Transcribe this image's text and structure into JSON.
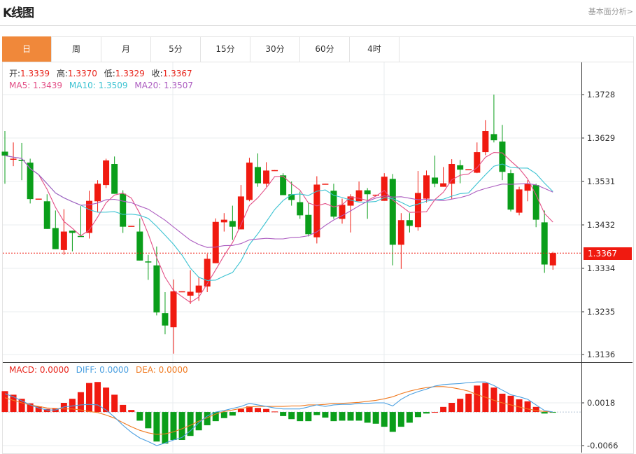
{
  "header": {
    "title": "K线图",
    "link_label": "基本面分析>"
  },
  "tabs": [
    {
      "label": "日",
      "active": true
    },
    {
      "label": "周"
    },
    {
      "label": "月"
    },
    {
      "label": "5分"
    },
    {
      "label": "15分"
    },
    {
      "label": "30分"
    },
    {
      "label": "60分"
    },
    {
      "label": "4时"
    }
  ],
  "legend": {
    "open_label": "开:",
    "open": "1.3339",
    "high_label": "高:",
    "high": "1.3370",
    "low_label": "低:",
    "low": "1.3329",
    "close_label": "收:",
    "close": "1.3367",
    "ma5": "MA5: 1.3439",
    "ma10": "MA10: 1.3509",
    "ma20": "MA20: 1.3507"
  },
  "macd_legend": {
    "macd": "MACD: 0.0000",
    "diff": "DIFF: 0.0000",
    "dea": "DEA: 0.0000"
  },
  "colors": {
    "up": "#f01a10",
    "down": "#0a9e1a",
    "ma5": "#e34f86",
    "ma10": "#3cc3d2",
    "ma20": "#ac5cc0",
    "diff": "#4a9fe0",
    "dea": "#f07a20",
    "accent": "#f0883a"
  },
  "price_axis": {
    "ticks": [
      "1.3728",
      "1.3629",
      "1.3531",
      "1.3432",
      "1.3334",
      "1.3235",
      "1.3136"
    ],
    "current": "1.3367"
  },
  "macd_axis": {
    "ticks": [
      "0.0018",
      "-0.0066"
    ]
  },
  "chart_data": [
    {
      "type": "candlestick",
      "fields": [
        "open",
        "high",
        "low",
        "close"
      ],
      "ylim": [
        1.3136,
        1.3728
      ],
      "grid": true,
      "candles": [
        [
          1.3598,
          1.3645,
          1.3525,
          1.3589
        ],
        [
          1.358,
          1.3619,
          1.3565,
          1.3582
        ],
        [
          1.3579,
          1.3618,
          1.3533,
          1.3577
        ],
        [
          1.3573,
          1.3582,
          1.348,
          1.349
        ],
        [
          1.349,
          1.3491,
          1.349,
          1.3491
        ],
        [
          1.3485,
          1.3501,
          1.3422,
          1.3422
        ],
        [
          1.3424,
          1.3464,
          1.3376,
          1.3376
        ],
        [
          1.3374,
          1.3467,
          1.3363,
          1.3416
        ],
        [
          1.3418,
          1.3418,
          1.3371,
          1.3413
        ],
        [
          1.3406,
          1.3474,
          1.3405,
          1.3405
        ],
        [
          1.3413,
          1.3509,
          1.34,
          1.3486
        ],
        [
          1.3485,
          1.3533,
          1.3461,
          1.3525
        ],
        [
          1.3522,
          1.3582,
          1.3515,
          1.3578
        ],
        [
          1.357,
          1.3587,
          1.3502,
          1.3502
        ],
        [
          1.3502,
          1.351,
          1.3413,
          1.3427
        ],
        [
          1.3428,
          1.3429,
          1.3428,
          1.3429
        ],
        [
          1.3416,
          1.3446,
          1.335,
          1.335
        ],
        [
          1.3348,
          1.3363,
          1.3306,
          1.3346
        ],
        [
          1.3339,
          1.3382,
          1.3225,
          1.3232
        ],
        [
          1.323,
          1.3278,
          1.3182,
          1.3202
        ],
        [
          1.3198,
          1.3307,
          1.3138,
          1.328
        ],
        [
          1.3279,
          1.328,
          1.3279,
          1.328
        ],
        [
          1.327,
          1.3328,
          1.3251,
          1.3279
        ],
        [
          1.3277,
          1.3312,
          1.3258,
          1.3293
        ],
        [
          1.3291,
          1.3365,
          1.3278,
          1.3354
        ],
        [
          1.3344,
          1.3446,
          1.3344,
          1.3438
        ],
        [
          1.3437,
          1.3458,
          1.3416,
          1.3443
        ],
        [
          1.344,
          1.3475,
          1.3397,
          1.3427
        ],
        [
          1.3421,
          1.3522,
          1.3421,
          1.3496
        ],
        [
          1.3488,
          1.3584,
          1.3485,
          1.3573
        ],
        [
          1.3563,
          1.3594,
          1.3518,
          1.3526
        ],
        [
          1.3525,
          1.3574,
          1.3518,
          1.3555
        ],
        [
          1.3555,
          1.3556,
          1.3555,
          1.3556
        ],
        [
          1.3544,
          1.3549,
          1.3499,
          1.3499
        ],
        [
          1.3501,
          1.353,
          1.3475,
          1.3488
        ],
        [
          1.3483,
          1.3507,
          1.3445,
          1.3453
        ],
        [
          1.3454,
          1.3482,
          1.3405,
          1.341
        ],
        [
          1.3403,
          1.3542,
          1.3389,
          1.3523
        ],
        [
          1.3524,
          1.3525,
          1.3524,
          1.3525
        ],
        [
          1.3509,
          1.3525,
          1.3445,
          1.345
        ],
        [
          1.3445,
          1.3491,
          1.3434,
          1.3477
        ],
        [
          1.3475,
          1.3501,
          1.3414,
          1.3496
        ],
        [
          1.3485,
          1.353,
          1.3485,
          1.351
        ],
        [
          1.351,
          1.3515,
          1.3445,
          1.3501
        ],
        [
          1.3499,
          1.35,
          1.3499,
          1.35
        ],
        [
          1.3486,
          1.3549,
          1.3486,
          1.3541
        ],
        [
          1.3536,
          1.3547,
          1.3339,
          1.3386
        ],
        [
          1.3386,
          1.3458,
          1.3331,
          1.3442
        ],
        [
          1.3442,
          1.3458,
          1.3414,
          1.3429
        ],
        [
          1.3426,
          1.3554,
          1.3418,
          1.3504
        ],
        [
          1.3491,
          1.3555,
          1.3482,
          1.3544
        ],
        [
          1.3539,
          1.3589,
          1.3517,
          1.3525
        ],
        [
          1.3518,
          1.3563,
          1.3518,
          1.3526
        ],
        [
          1.3525,
          1.3581,
          1.3491,
          1.357
        ],
        [
          1.3567,
          1.3579,
          1.3526,
          1.3557
        ],
        [
          1.3557,
          1.3558,
          1.3557,
          1.3558
        ],
        [
          1.355,
          1.3619,
          1.3549,
          1.3597
        ],
        [
          1.3597,
          1.367,
          1.359,
          1.3645
        ],
        [
          1.3638,
          1.3728,
          1.3619,
          1.3624
        ],
        [
          1.3621,
          1.3659,
          1.3533,
          1.3552
        ],
        [
          1.3549,
          1.3557,
          1.3462,
          1.3466
        ],
        [
          1.3459,
          1.3518,
          1.3453,
          1.3512
        ],
        [
          1.3509,
          1.3533,
          1.3485,
          1.3525
        ],
        [
          1.3522,
          1.3525,
          1.3426,
          1.3443
        ],
        [
          1.3437,
          1.3464,
          1.3322,
          1.3341
        ],
        [
          1.3339,
          1.337,
          1.3329,
          1.3367
        ]
      ],
      "ma_periods": [
        5,
        10,
        20
      ]
    },
    {
      "type": "bar+line",
      "ylim": [
        -0.0066,
        0.0018
      ],
      "macd": [
        0.0041,
        0.0034,
        0.0026,
        0.0017,
        0.0011,
        0.0006,
        0.0007,
        0.0018,
        0.0026,
        0.0039,
        0.0057,
        0.0059,
        0.0048,
        0.0034,
        0.0014,
        0.0004,
        -0.0017,
        -0.0032,
        -0.0058,
        -0.0062,
        -0.0055,
        -0.0055,
        -0.0047,
        -0.0036,
        -0.0026,
        -0.0018,
        -0.0012,
        -0.0007,
        0.0006,
        0.0011,
        0.0008,
        0.0006,
        0.0001,
        -0.0008,
        -0.0014,
        -0.0018,
        -0.0018,
        -0.0006,
        -0.0011,
        -0.0018,
        -0.0017,
        -0.0017,
        -0.0017,
        -0.0021,
        -0.0023,
        -0.0029,
        -0.0039,
        -0.0029,
        -0.0021,
        -0.001,
        -0.0003,
        0,
        0.001,
        0.0018,
        0.0026,
        0.0036,
        0.0052,
        0.0057,
        0.0048,
        0.0036,
        0.0032,
        0.0025,
        0.0021,
        0.001,
        -0.0003,
        -0.0001
      ],
      "diff": [
        0.0036,
        0.003,
        0.0022,
        0.0014,
        0.0008,
        0.0004,
        0.0004,
        0.001,
        0.0012,
        0.0014,
        0.0015,
        0.0014,
        0.0004,
        -0.001,
        -0.0026,
        -0.004,
        -0.0051,
        -0.0058,
        -0.0066,
        -0.0061,
        -0.0055,
        -0.005,
        -0.0037,
        -0.0021,
        -0.0008,
        0,
        0.0003,
        0.0007,
        0.0011,
        0.0017,
        0.0014,
        0.0011,
        0.0008,
        0.0006,
        0.0006,
        0.0006,
        0.001,
        0.0014,
        0.0011,
        0.0014,
        0.0015,
        0.0015,
        0.0017,
        0.0017,
        0.0018,
        0.0018,
        0.0012,
        0.0025,
        0.0034,
        0.004,
        0.0045,
        0.0051,
        0.0054,
        0.0055,
        0.0056,
        0.0058,
        0.0059,
        0.0059,
        0.0052,
        0.0043,
        0.0034,
        0.003,
        0.0025,
        0.0014,
        0.0003,
        0
      ],
      "dea": [
        0.0028,
        0.0023,
        0.0018,
        0.0014,
        0.0011,
        0.0008,
        0.0007,
        0.0006,
        0.0006,
        0.0004,
        0.0001,
        -0.0001,
        -0.0006,
        -0.0012,
        -0.0021,
        -0.0029,
        -0.0036,
        -0.0041,
        -0.0044,
        -0.0043,
        -0.0039,
        -0.0033,
        -0.0026,
        -0.0018,
        -0.0011,
        -0.0004,
        0.0001,
        0.0004,
        0.0007,
        0.001,
        0.0011,
        0.0011,
        0.0011,
        0.0011,
        0.0012,
        0.0012,
        0.0014,
        0.0014,
        0.0015,
        0.0017,
        0.0017,
        0.0018,
        0.0019,
        0.0021,
        0.0023,
        0.0026,
        0.003,
        0.0036,
        0.0041,
        0.0045,
        0.0048,
        0.005,
        0.005,
        0.0048,
        0.0045,
        0.0041,
        0.0034,
        0.0029,
        0.0023,
        0.0018,
        0.0014,
        0.001,
        0.0006,
        0.0003,
        0.0001,
        0
      ]
    }
  ]
}
